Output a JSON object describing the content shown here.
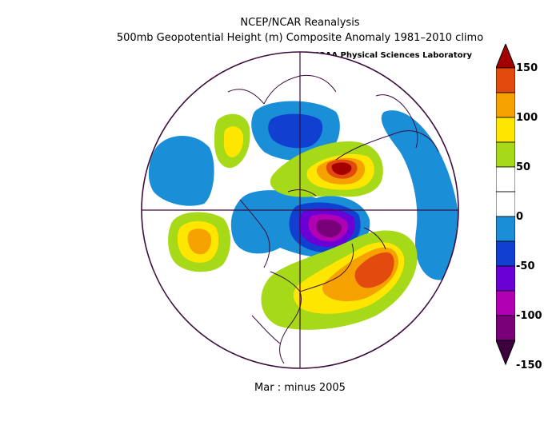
{
  "title": "NCEP/NCAR Reanalysis",
  "subtitle": "500mb Geopotential Height (m) Composite Anomaly 1981–2010 climo",
  "credit": "NOAA Physical Sciences Laboratory",
  "footer": "Mar :  minus 2005",
  "colorbar": {
    "labels": [
      "150",
      "100",
      "50",
      "0",
      "-50",
      "-100",
      "-150"
    ],
    "colors": [
      "#a50000",
      "#e34a0e",
      "#f5a100",
      "#ffe600",
      "#a6d918",
      "#ffffff",
      "#ffffff",
      "#1a8fd8",
      "#1140d0",
      "#6a00d5",
      "#b100b3",
      "#7a007a",
      "#3d003d"
    ]
  },
  "map": {
    "projection": "north-polar-stereographic",
    "variable": "500mb geopotential height anomaly",
    "units": "m",
    "anomaly_centers": [
      {
        "region": "North Atlantic",
        "sign": "positive",
        "peak_value": "above 100"
      },
      {
        "region": "Arctic Ocean / Siberia",
        "sign": "positive",
        "peak_value": "above 100"
      },
      {
        "region": "North Pacific / Gulf of Alaska",
        "sign": "positive",
        "peak_value": "above 50"
      },
      {
        "region": "Greenland / Baffin Bay",
        "sign": "negative",
        "peak_value": "below -100"
      },
      {
        "region": "East Asia",
        "sign": "negative",
        "peak_value": "below -50"
      }
    ]
  }
}
